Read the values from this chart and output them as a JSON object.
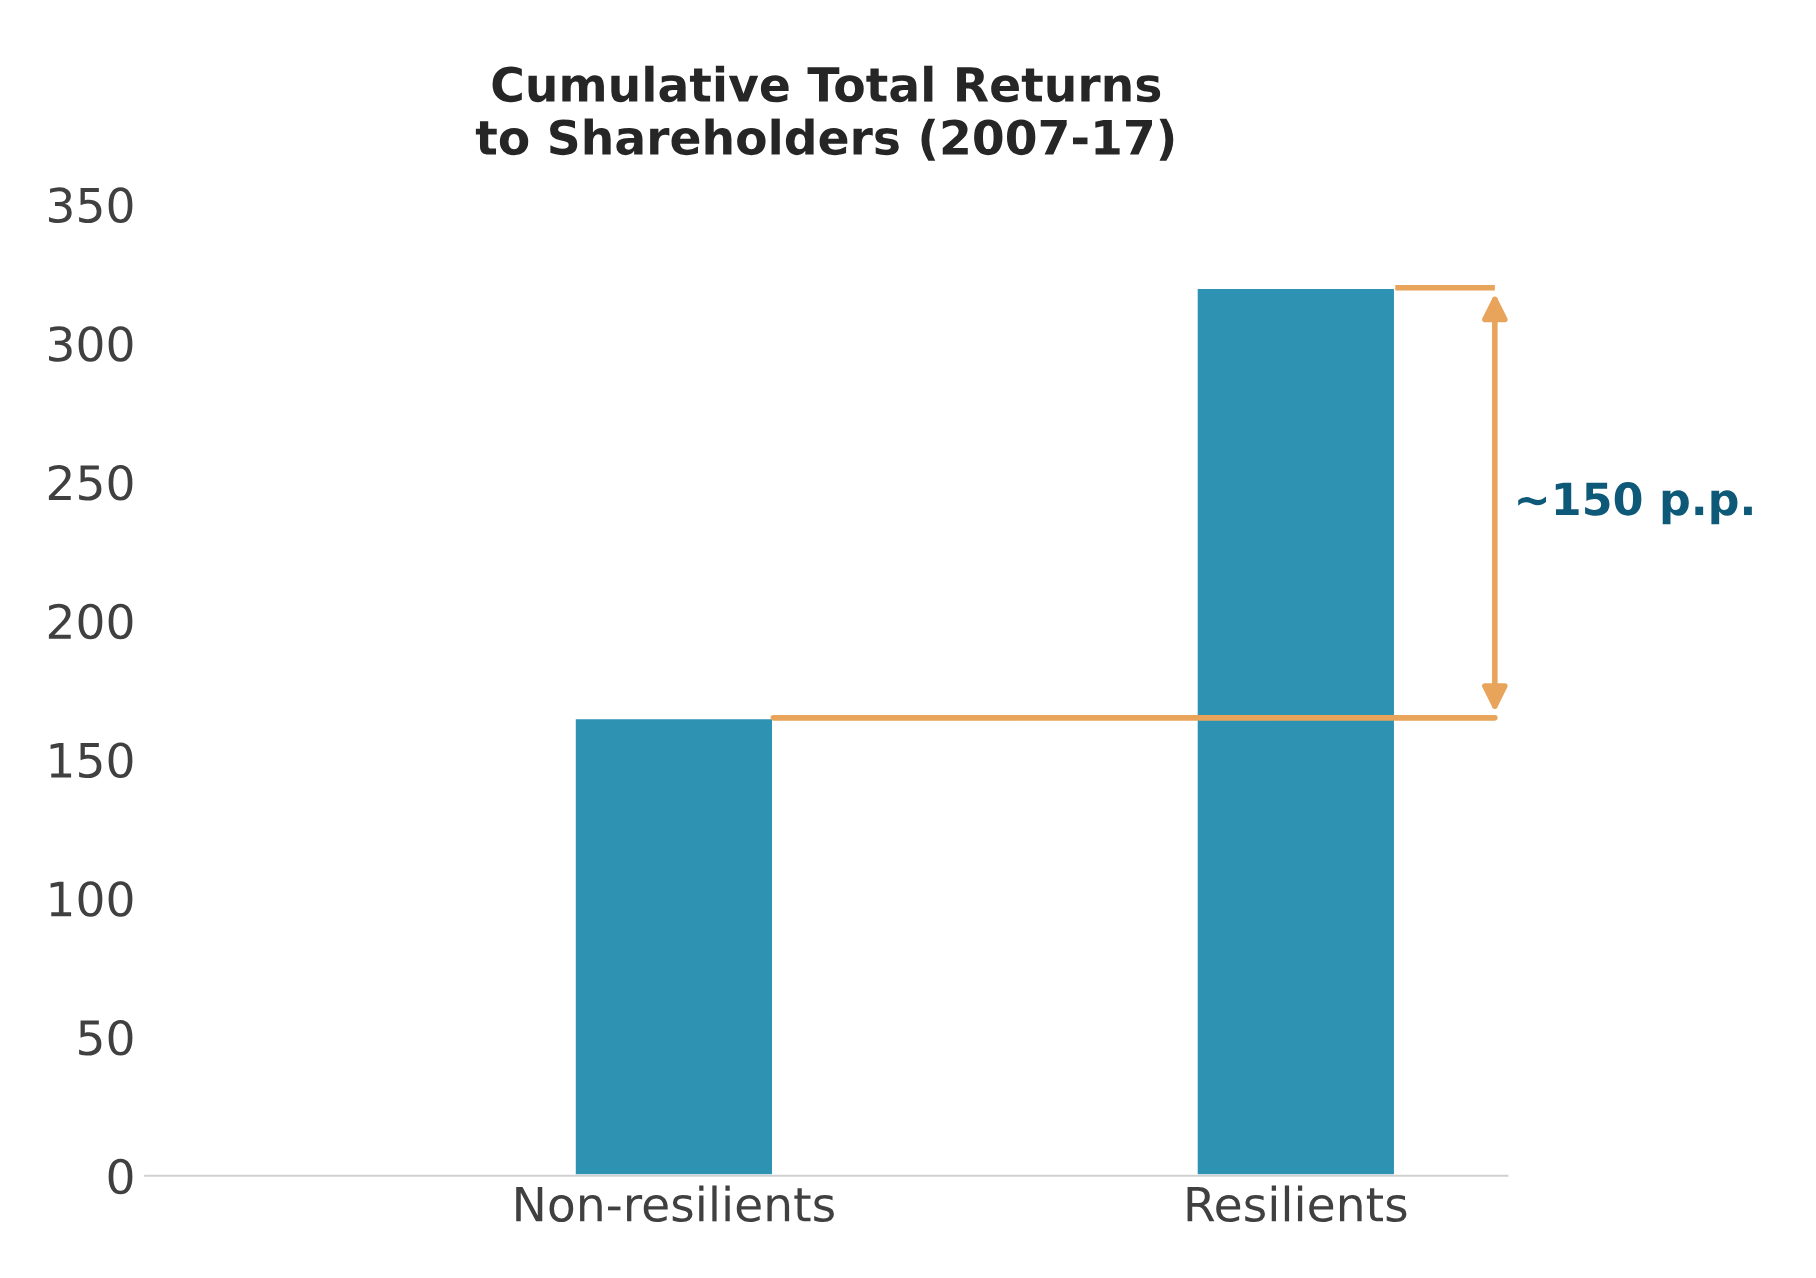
{
  "chart_data": {
    "type": "bar",
    "title": "Cumulative Total Returns\nto Shareholders (2007-17)",
    "categories": [
      "Non-resilients",
      "Resilients"
    ],
    "values": [
      165,
      320
    ],
    "color": "#2e92b3",
    "ylim": [
      0,
      350
    ],
    "yticks": [
      0,
      50,
      100,
      150,
      200,
      250,
      300,
      350
    ],
    "grid": false,
    "ref_lines": [
      {
        "axis": "y",
        "value": 165,
        "color": "#e8a45a"
      }
    ],
    "annotations": [
      "~150 p.p."
    ]
  }
}
